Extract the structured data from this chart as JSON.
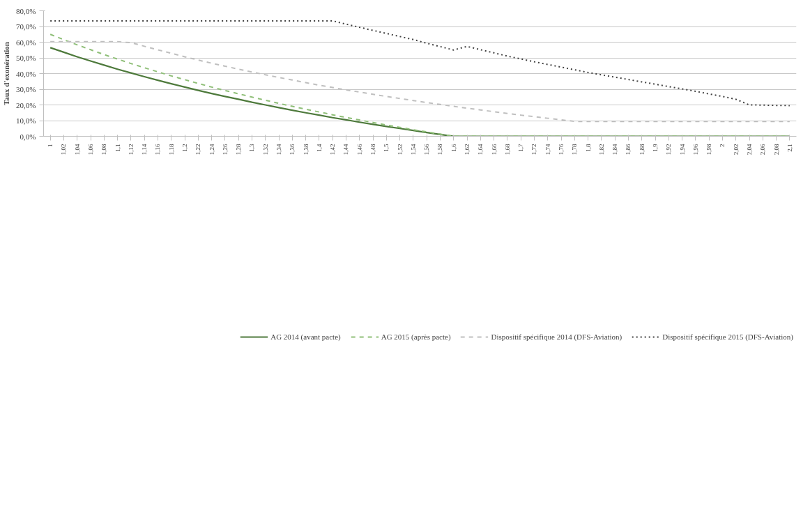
{
  "chart_data": {
    "type": "line",
    "ylabel": "Taux d'exonération",
    "categories": [
      "1",
      "1,02",
      "1,04",
      "1,06",
      "1,08",
      "1,1",
      "1,12",
      "1,14",
      "1,16",
      "1,18",
      "1,2",
      "1,22",
      "1,24",
      "1,26",
      "1,28",
      "1,3",
      "1,32",
      "1,34",
      "1,36",
      "1,38",
      "1,4",
      "1,42",
      "1,44",
      "1,46",
      "1,48",
      "1,5",
      "1,52",
      "1,54",
      "1,56",
      "1,58",
      "1,6",
      "1,62",
      "1,64",
      "1,66",
      "1,68",
      "1,7",
      "1,72",
      "1,74",
      "1,76",
      "1,78",
      "1,8",
      "1,82",
      "1,84",
      "1,86",
      "1,88",
      "1,9",
      "1,92",
      "1,94",
      "1,96",
      "1,98",
      "2",
      "2,02",
      "2,04",
      "2,06",
      "2,08",
      "2,1"
    ],
    "series": [
      {
        "name": "AG 2014 (avant pacte)",
        "color": "#4e7a3c",
        "line_style": "solid",
        "values": [
          56.5,
          53.6,
          50.7,
          48.0,
          45.4,
          42.8,
          40.4,
          38.0,
          35.7,
          33.5,
          31.4,
          29.3,
          27.3,
          25.4,
          23.6,
          21.7,
          20.0,
          18.3,
          16.6,
          15.0,
          13.5,
          11.9,
          10.5,
          9.0,
          7.6,
          6.3,
          5.0,
          3.7,
          2.4,
          1.2,
          0,
          0,
          0,
          0,
          0,
          0,
          0,
          0,
          0,
          0,
          0,
          0,
          0,
          0,
          0,
          0,
          0,
          0,
          0,
          0,
          0,
          0,
          0,
          0,
          0,
          0
        ]
      },
      {
        "name": "AG 2015 (après pacte)",
        "color": "#8fbf78",
        "line_style": "dashed",
        "values": [
          65.0,
          61.6,
          58.3,
          55.2,
          52.1,
          49.2,
          46.4,
          43.7,
          41.1,
          38.5,
          36.1,
          33.7,
          31.4,
          29.2,
          27.1,
          25.0,
          23.0,
          21.0,
          19.1,
          17.3,
          15.5,
          13.7,
          12.0,
          10.4,
          8.8,
          7.2,
          5.7,
          4.2,
          2.8,
          1.4,
          0,
          0,
          0,
          0,
          0,
          0,
          0,
          0,
          0,
          0,
          0,
          0,
          0,
          0,
          0,
          0,
          0,
          0,
          0,
          0,
          0,
          0,
          0,
          0,
          0,
          0
        ]
      },
      {
        "name": "Dispositif spécifique 2014 (DFS-Aviation)",
        "color": "#bfbfbf",
        "line_style": "dashed",
        "values": [
          60.3,
          60.3,
          60.3,
          60.3,
          60.3,
          60.3,
          59.7,
          57.4,
          55.1,
          52.9,
          50.7,
          48.6,
          46.6,
          44.7,
          42.8,
          41.0,
          39.2,
          37.5,
          35.9,
          34.2,
          32.6,
          31.1,
          29.6,
          28.2,
          26.8,
          25.4,
          24.1,
          22.8,
          21.5,
          20.3,
          19.1,
          17.9,
          16.8,
          15.7,
          14.6,
          13.5,
          12.5,
          11.5,
          10.5,
          9.5,
          9.5,
          9.5,
          9.5,
          9.5,
          9.5,
          9.5,
          9.5,
          9.5,
          9.5,
          9.5,
          9.5,
          9.5,
          9.5,
          9.5,
          9.5,
          9.5
        ]
      },
      {
        "name": "Dispositif spécifique 2015 (DFS-Aviation)",
        "color": "#404040",
        "line_style": "dotted",
        "values": [
          73.6,
          73.6,
          73.6,
          73.6,
          73.6,
          73.6,
          73.6,
          73.6,
          73.6,
          73.6,
          73.6,
          73.6,
          73.6,
          73.6,
          73.6,
          73.6,
          73.6,
          73.6,
          73.6,
          73.6,
          73.6,
          73.6,
          71.5,
          69.5,
          67.5,
          65.6,
          63.6,
          61.7,
          59.3,
          57.2,
          55.0,
          57.3,
          55.2,
          53.2,
          51.1,
          49.3,
          47.5,
          45.8,
          44.1,
          42.4,
          40.7,
          39.2,
          37.7,
          36.2,
          34.7,
          33.2,
          31.7,
          30.2,
          28.7,
          27.0,
          25.4,
          23.6,
          20.0,
          19.9,
          19.7,
          19.6
        ]
      }
    ],
    "ylim": [
      0,
      80
    ],
    "yticks": [
      {
        "value": 0,
        "label": "0,0%"
      },
      {
        "value": 10,
        "label": "10,0%"
      },
      {
        "value": 20,
        "label": "20,0%"
      },
      {
        "value": 30,
        "label": "30,0%"
      },
      {
        "value": 40,
        "label": "40,0%"
      },
      {
        "value": 50,
        "label": "50,0%"
      },
      {
        "value": 60,
        "label": "60,0%"
      },
      {
        "value": 70,
        "label": "70,0%"
      },
      {
        "value": 80,
        "label": "80,0%"
      }
    ],
    "grid": "y",
    "legend": "bottom",
    "marker": "none"
  }
}
